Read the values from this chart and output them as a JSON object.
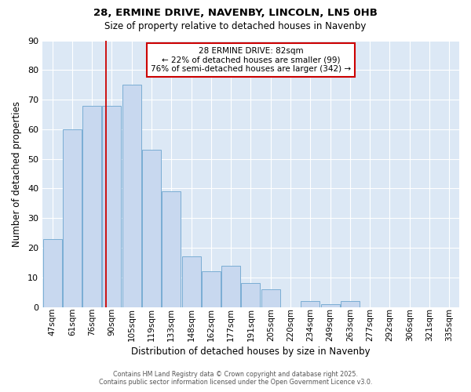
{
  "title1": "28, ERMINE DRIVE, NAVENBY, LINCOLN, LN5 0HB",
  "title2": "Size of property relative to detached houses in Navenby",
  "xlabel": "Distribution of detached houses by size in Navenby",
  "ylabel": "Number of detached properties",
  "categories": [
    "47sqm",
    "61sqm",
    "76sqm",
    "90sqm",
    "105sqm",
    "119sqm",
    "133sqm",
    "148sqm",
    "162sqm",
    "177sqm",
    "191sqm",
    "205sqm",
    "220sqm",
    "234sqm",
    "249sqm",
    "263sqm",
    "277sqm",
    "292sqm",
    "306sqm",
    "321sqm",
    "335sqm"
  ],
  "values": [
    23,
    60,
    68,
    68,
    75,
    53,
    39,
    17,
    12,
    14,
    8,
    6,
    0,
    2,
    1,
    2,
    0,
    0,
    0,
    0,
    0
  ],
  "bar_color": "#c8d8ef",
  "bar_edgecolor": "#7aadd4",
  "background_color": "#ffffff",
  "plot_bg_color": "#dce8f5",
  "grid_color": "#ffffff",
  "red_line_x": 2.72,
  "annotation_title": "28 ERMINE DRIVE: 82sqm",
  "annotation_line1": "← 22% of detached houses are smaller (99)",
  "annotation_line2": "76% of semi-detached houses are larger (342) →",
  "annotation_box_color": "#ffffff",
  "annotation_box_edgecolor": "#cc0000",
  "footer1": "Contains HM Land Registry data © Crown copyright and database right 2025.",
  "footer2": "Contains public sector information licensed under the Open Government Licence v3.0.",
  "ylim": [
    0,
    90
  ],
  "yticks": [
    0,
    10,
    20,
    30,
    40,
    50,
    60,
    70,
    80,
    90
  ]
}
